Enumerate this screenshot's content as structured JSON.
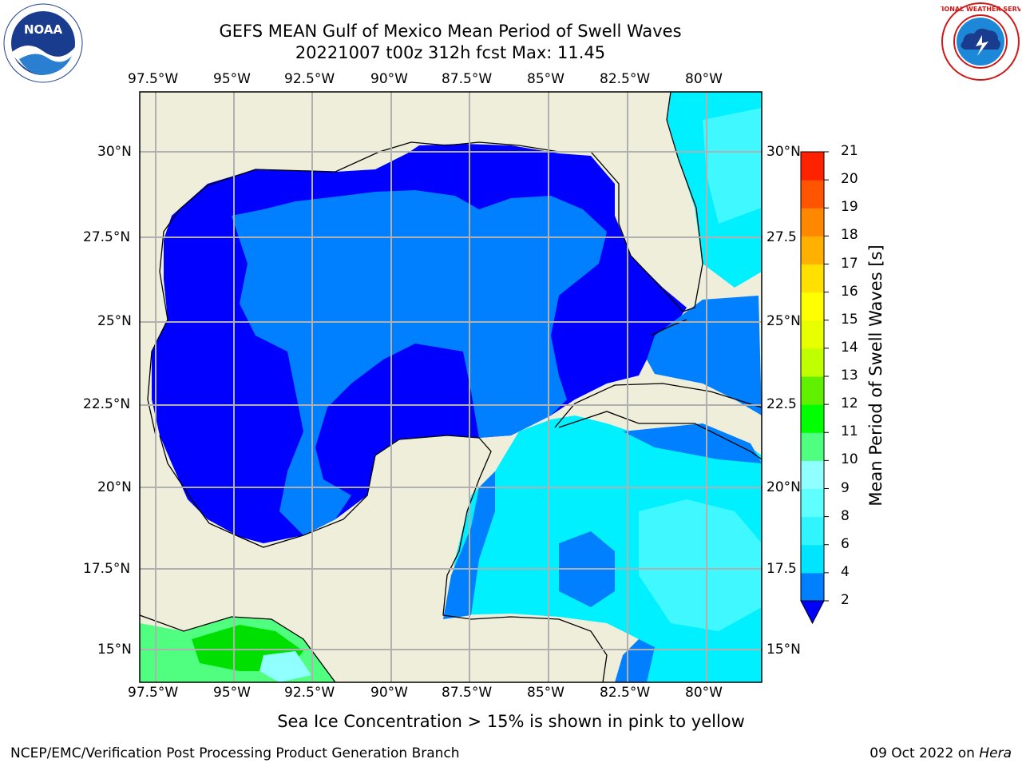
{
  "header": {
    "title_line1": "GEFS MEAN Gulf of Mexico Mean Period of Swell Waves",
    "title_line2": "20221007 t00z 312h fcst   Max: 11.45"
  },
  "logos": {
    "left_text": "NOAA",
    "left_ring_text": "NATIONAL OCEANIC AND ATMOSPHERIC ADMINISTRATION · U.S. DEPARTMENT OF COMMERCE",
    "right_ring_text": "NATIONAL WEATHER SERVICE"
  },
  "axes": {
    "lon_labels": [
      "97.5°W",
      "95°W",
      "92.5°W",
      "90°W",
      "87.5°W",
      "85°W",
      "82.5°W",
      "80°W"
    ],
    "lat_labels_left": [
      "30°N",
      "27.5°N",
      "25°N",
      "22.5°N",
      "20°N",
      "17.5°N",
      "15°N"
    ],
    "lat_labels_right": [
      "30°N",
      "27.5",
      "25°N",
      "22.5",
      "20°N",
      "17.5",
      "15°N"
    ]
  },
  "colorbar": {
    "title": "Mean Period of Swell Waves [s]",
    "ticks": [
      "2",
      "4",
      "6",
      "8",
      "9",
      "10",
      "11",
      "12",
      "13",
      "14",
      "15",
      "16",
      "17",
      "18",
      "19",
      "20",
      "21"
    ],
    "colors": [
      "#0080ff",
      "#00e5ff",
      "#30f5ff",
      "#60ffff",
      "#90ffff",
      "#50ff80",
      "#00ff00",
      "#60f000",
      "#c0ff00",
      "#e8ff00",
      "#ffff00",
      "#ffe000",
      "#ffb000",
      "#ff8800",
      "#ff5500",
      "#ff2200",
      "#ff0000"
    ],
    "under_color": "#0000ff"
  },
  "colors": {
    "land": "#efeedb",
    "coast": "#000000",
    "grid": "#b0b0b0"
  },
  "note": "Sea Ice Concentration > 15% is shown in pink to yellow",
  "footer": {
    "left": "NCEP/EMC/Verification Post Processing Product Generation Branch",
    "right_prefix": "09 Oct 2022 on ",
    "right_host": "Hera"
  }
}
